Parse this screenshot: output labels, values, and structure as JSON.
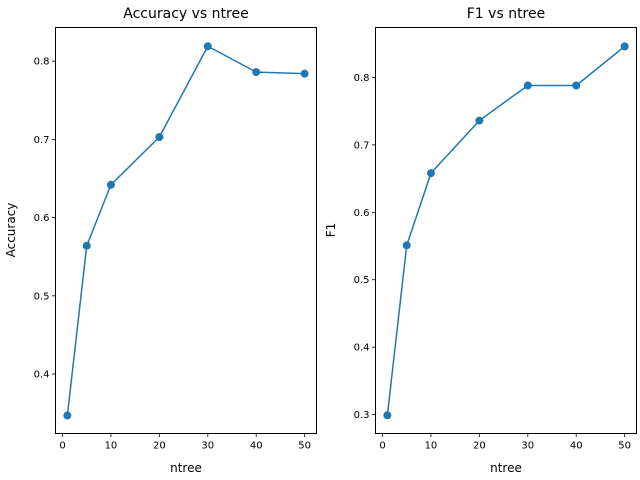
{
  "figure": {
    "background": "#ffffff"
  },
  "chart_data": [
    {
      "type": "line",
      "title": "Accuracy vs ntree",
      "xlabel": "ntree",
      "ylabel": "Accuracy",
      "x": [
        1,
        5,
        10,
        20,
        30,
        40,
        50
      ],
      "series": [
        {
          "values": [
            0.347,
            0.564,
            0.642,
            0.703,
            0.819,
            0.786,
            0.784
          ],
          "color": "#1f77b4",
          "marker": "circle"
        }
      ],
      "xlim": [
        -1.45,
        52.45
      ],
      "ylim": [
        0.324,
        0.843
      ],
      "xticks": [
        0,
        10,
        20,
        30,
        40,
        50
      ],
      "yticks": [
        0.4,
        0.5,
        0.6,
        0.7,
        0.8
      ],
      "xtick_labels": [
        "0",
        "10",
        "20",
        "30",
        "40",
        "50"
      ],
      "ytick_labels": [
        "0.4",
        "0.5",
        "0.6",
        "0.7",
        "0.8"
      ],
      "grid": false,
      "legend": false
    },
    {
      "type": "line",
      "title": "F1 vs ntree",
      "xlabel": "ntree",
      "ylabel": "F1",
      "x": [
        1,
        5,
        10,
        20,
        30,
        40,
        50
      ],
      "series": [
        {
          "values": [
            0.299,
            0.551,
            0.658,
            0.736,
            0.788,
            0.788,
            0.846
          ],
          "color": "#1f77b4",
          "marker": "circle"
        }
      ],
      "xlim": [
        -1.45,
        52.45
      ],
      "ylim": [
        0.272,
        0.874
      ],
      "xticks": [
        0,
        10,
        20,
        30,
        40,
        50
      ],
      "yticks": [
        0.3,
        0.4,
        0.5,
        0.6,
        0.7,
        0.8
      ],
      "xtick_labels": [
        "0",
        "10",
        "20",
        "30",
        "40",
        "50"
      ],
      "ytick_labels": [
        "0.3",
        "0.4",
        "0.5",
        "0.6",
        "0.7",
        "0.8"
      ],
      "grid": false,
      "legend": false
    }
  ]
}
